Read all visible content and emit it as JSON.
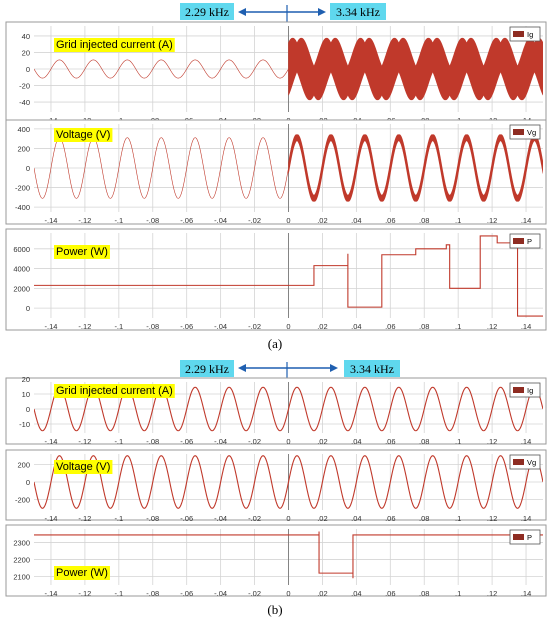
{
  "figure": {
    "caption_a": "(a)",
    "caption_b": "(b)",
    "freq_before": "2.29 kHz",
    "freq_after": "3.34 kHz",
    "highlight_color": "#ffff00",
    "freq_highlight_color": "#5fd8ee",
    "arrow_color": "#1f5fb0",
    "trace_color": "#c0392b"
  },
  "chart_data": [
    {
      "id": "a_current",
      "type": "line",
      "title": "Grid injected current (A)",
      "series": [
        {
          "name": "Ig"
        }
      ],
      "xlim": [
        -0.15,
        0.15
      ],
      "x_ticks": [
        -0.14,
        -0.12,
        -0.1,
        -0.08,
        -0.06,
        -0.04,
        -0.02,
        0,
        0.02,
        0.04,
        0.06,
        0.08,
        0.1,
        0.12,
        0.14
      ],
      "ylim": [
        -52,
        52
      ],
      "y_ticks": [
        40,
        20,
        0,
        -20,
        -40
      ],
      "grid": true,
      "legend": "top-right",
      "segments": [
        {
          "x": [
            -0.15,
            0
          ],
          "fundamental_amplitude": 11,
          "fundamental_hz": 50,
          "ripple_amplitude": 0
        },
        {
          "x": [
            0,
            0.15
          ],
          "fundamental_amplitude": 14,
          "fundamental_hz": 50,
          "ripple_amplitude": 32,
          "ripple_hz": 3340
        }
      ]
    },
    {
      "id": "a_voltage",
      "type": "line",
      "title": "Voltage (V)",
      "series": [
        {
          "name": "Vg"
        }
      ],
      "xlim": [
        -0.15,
        0.15
      ],
      "x_ticks": [
        -0.14,
        -0.12,
        -0.1,
        -0.08,
        -0.06,
        -0.04,
        -0.02,
        0,
        0.02,
        0.04,
        0.06,
        0.08,
        0.1,
        0.12,
        0.14
      ],
      "ylim": [
        -450,
        450
      ],
      "y_ticks": [
        400,
        200,
        0,
        -200,
        -400
      ],
      "grid": true,
      "legend": "top-right",
      "segments": [
        {
          "x": [
            -0.15,
            0
          ],
          "fundamental_amplitude": 310,
          "fundamental_hz": 50,
          "ripple_amplitude": 0
        },
        {
          "x": [
            0,
            0.15
          ],
          "fundamental_amplitude": 310,
          "fundamental_hz": 50,
          "ripple_amplitude": 60,
          "ripple_hz": 3340
        }
      ]
    },
    {
      "id": "a_power",
      "type": "line",
      "title": "Power (W)",
      "series": [
        {
          "name": "P"
        }
      ],
      "xlim": [
        -0.15,
        0.15
      ],
      "x_ticks": [
        -0.14,
        -0.12,
        -0.1,
        -0.08,
        -0.06,
        -0.04,
        -0.02,
        0,
        0.02,
        0.04,
        0.06,
        0.08,
        0.1,
        0.12,
        0.14
      ],
      "ylim": [
        -1000,
        7600
      ],
      "y_ticks": [
        6000,
        4000,
        2000,
        0
      ],
      "grid": true,
      "legend": "top-right",
      "steps": [
        {
          "x": -0.15,
          "y": 2300
        },
        {
          "x": 0.015,
          "y": 2300
        },
        {
          "x": 0.015,
          "y": 4300
        },
        {
          "x": 0.035,
          "y": 4300
        },
        {
          "x": 0.035,
          "y": 5500
        },
        {
          "x": 0.035,
          "y": 100
        },
        {
          "x": 0.055,
          "y": 100
        },
        {
          "x": 0.055,
          "y": 5400
        },
        {
          "x": 0.075,
          "y": 5400
        },
        {
          "x": 0.075,
          "y": 6000
        },
        {
          "x": 0.093,
          "y": 6000
        },
        {
          "x": 0.093,
          "y": 6400
        },
        {
          "x": 0.095,
          "y": 6400
        },
        {
          "x": 0.095,
          "y": 2000
        },
        {
          "x": 0.113,
          "y": 2000
        },
        {
          "x": 0.113,
          "y": 7300
        },
        {
          "x": 0.123,
          "y": 7300
        },
        {
          "x": 0.123,
          "y": 6600
        },
        {
          "x": 0.133,
          "y": 6600
        },
        {
          "x": 0.133,
          "y": 7200
        },
        {
          "x": 0.135,
          "y": 7200
        },
        {
          "x": 0.135,
          "y": -800
        },
        {
          "x": 0.15,
          "y": -800
        }
      ]
    },
    {
      "id": "b_current",
      "type": "line",
      "title": "Grid injected current (A)",
      "series": [
        {
          "name": "Ig"
        }
      ],
      "xlim": [
        -0.15,
        0.15
      ],
      "x_ticks": [
        -0.14,
        -0.12,
        -0.1,
        -0.08,
        -0.06,
        -0.04,
        -0.02,
        0,
        0.02,
        0.04,
        0.06,
        0.08,
        0.1,
        0.12,
        0.14
      ],
      "ylim": [
        -16,
        18
      ],
      "y_ticks": [
        20,
        10,
        0,
        -10
      ],
      "grid": true,
      "legend": "top-right",
      "segments": [
        {
          "x": [
            -0.15,
            0.15
          ],
          "fundamental_amplitude": 14.5,
          "fundamental_hz": 50,
          "ripple_amplitude": 0
        }
      ]
    },
    {
      "id": "b_voltage",
      "type": "line",
      "title": "Voltage (V)",
      "series": [
        {
          "name": "Vg"
        }
      ],
      "xlim": [
        -0.15,
        0.15
      ],
      "x_ticks": [
        -0.14,
        -0.12,
        -0.1,
        -0.08,
        -0.06,
        -0.04,
        -0.02,
        0,
        0.02,
        0.04,
        0.06,
        0.08,
        0.1,
        0.12,
        0.14
      ],
      "ylim": [
        -320,
        320
      ],
      "y_ticks": [
        200,
        0,
        -200
      ],
      "grid": true,
      "legend": "top-right",
      "segments": [
        {
          "x": [
            -0.15,
            0.15
          ],
          "fundamental_amplitude": 300,
          "fundamental_hz": 50,
          "ripple_amplitude": 0
        }
      ]
    },
    {
      "id": "b_power",
      "type": "line",
      "title": "Power (W)",
      "series": [
        {
          "name": "P"
        }
      ],
      "xlim": [
        -0.15,
        0.15
      ],
      "x_ticks": [
        -0.14,
        -0.12,
        -0.1,
        -0.08,
        -0.06,
        -0.04,
        -0.02,
        0,
        0.02,
        0.04,
        0.06,
        0.08,
        0.1,
        0.12,
        0.14
      ],
      "ylim": [
        2050,
        2380
      ],
      "y_ticks": [
        2300,
        2200,
        2100
      ],
      "grid": true,
      "legend": "top-right",
      "steps": [
        {
          "x": -0.15,
          "y": 2345
        },
        {
          "x": 0.018,
          "y": 2345
        },
        {
          "x": 0.018,
          "y": 2365
        },
        {
          "x": 0.018,
          "y": 2120
        },
        {
          "x": 0.038,
          "y": 2120
        },
        {
          "x": 0.038,
          "y": 2090
        },
        {
          "x": 0.038,
          "y": 2345
        },
        {
          "x": 0.15,
          "y": 2345
        }
      ]
    }
  ]
}
